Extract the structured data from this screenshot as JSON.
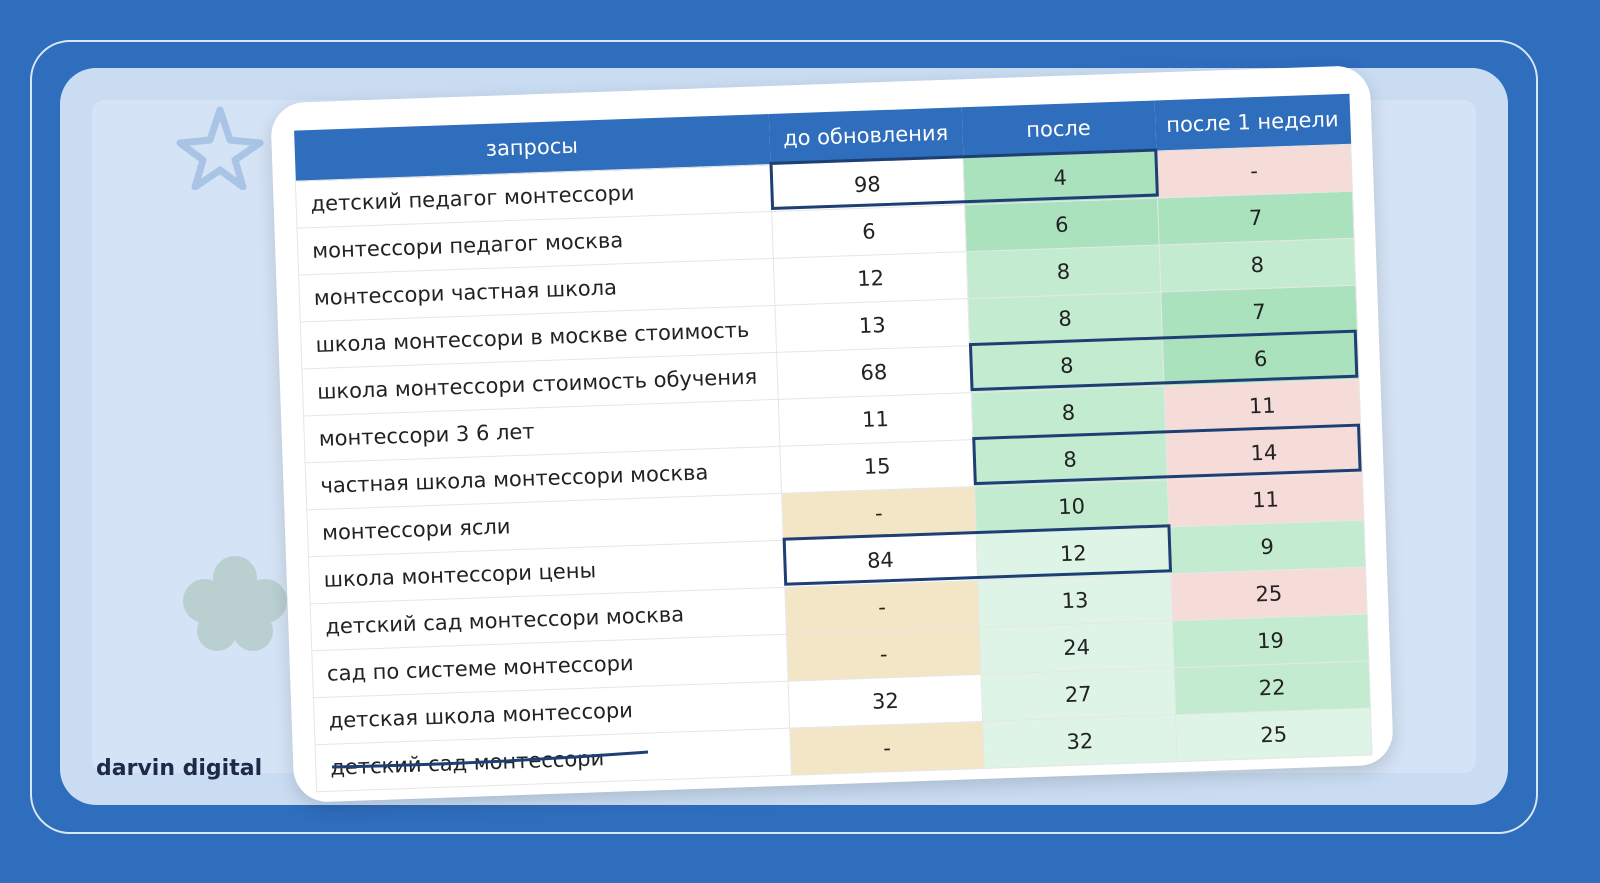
{
  "table": {
    "header": [
      "запросы",
      "до обновления",
      "после",
      "после 1 недели"
    ],
    "rows": [
      [
        "детский педагог монтессори",
        98,
        4,
        "-"
      ],
      [
        "монтессори педагог москва",
        6,
        6,
        7
      ],
      [
        "монтессори частная школа",
        12,
        8,
        8
      ],
      [
        "школа монтессори в москве стоимость",
        13,
        8,
        7
      ],
      [
        "школа монтессори стоимость обучения",
        68,
        8,
        6
      ],
      [
        "монтессори 3 6 лет",
        11,
        8,
        11
      ],
      [
        "частная школа монтессори москва",
        15,
        8,
        14
      ],
      [
        "монтессори ясли",
        "-",
        10,
        11
      ],
      [
        "школа монтессори цены",
        84,
        12,
        9
      ],
      [
        "детский сад монтессори москва",
        "-",
        13,
        25
      ],
      [
        "сад по системе монтессори",
        "-",
        24,
        19
      ],
      [
        "детская школа монтессори",
        32,
        27,
        22
      ],
      [
        "детский сад монтессори",
        "-",
        32,
        25
      ]
    ]
  },
  "logo": "darvin digital"
}
